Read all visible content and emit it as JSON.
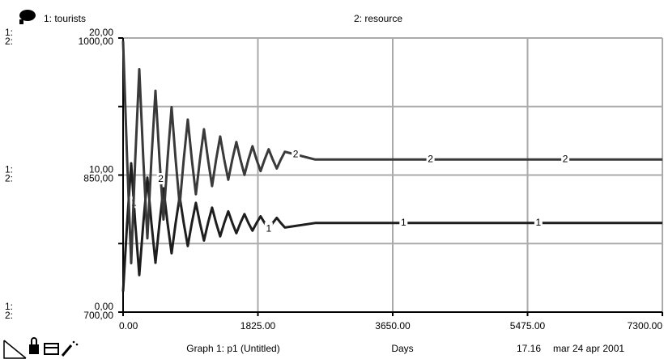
{
  "chart_data": {
    "type": "line",
    "x": [
      0,
      54.75,
      109.5,
      164.25,
      219,
      273.75,
      328.5,
      383.25,
      438,
      492.75,
      547.5,
      602.25,
      657,
      711.75,
      766.5,
      821.25,
      876,
      930.75,
      985.5,
      1040.25,
      1095,
      1149.75,
      1204.5,
      1259.25,
      1314,
      1368.75,
      1423.5,
      1478.25,
      1533,
      1587.75,
      1642.5,
      1697.25,
      1752,
      1806.75,
      1861.5,
      1916.25,
      1971,
      2025.75,
      2080.5,
      2135.25,
      2190,
      2600,
      3200,
      4000,
      5000,
      6000,
      7300
    ],
    "series": [
      {
        "name": "1: tourists",
        "key": "1",
        "axis_label": "1:",
        "color": "#1e1e1e",
        "values": [
          1.5,
          6.5,
          10.86,
          6.5,
          2.7,
          6.5,
          9.82,
          6.5,
          3.6,
          6.5,
          9.03,
          6.5,
          4.29,
          6.5,
          8.43,
          6.5,
          4.82,
          6.5,
          7.97,
          6.5,
          5.22,
          6.5,
          7.62,
          6.5,
          5.53,
          6.5,
          7.35,
          6.5,
          5.76,
          6.5,
          7.15,
          6.5,
          5.94,
          6.5,
          6.99,
          6.5,
          6.07,
          6.5,
          6.88,
          6.5,
          6.17,
          6.5,
          6.5,
          6.5,
          6.5,
          6.5,
          6.5
        ]
      },
      {
        "name": "2: resource",
        "key": "2",
        "axis_label": "2:",
        "color": "#3a3a3a",
        "axis": "y2",
        "values": [
          997,
          867,
          753.6,
          867,
          965.9,
          867,
          780.7,
          867,
          942.3,
          867,
          801.3,
          867,
          924.3,
          867,
          816.9,
          867,
          910.7,
          867,
          828.9,
          867,
          900.2,
          867,
          838,
          867,
          892.2,
          867,
          844.9,
          867,
          886.2,
          867,
          850.2,
          867,
          881.6,
          867,
          854.3,
          867,
          878.2,
          867,
          857.2,
          867,
          875.5,
          867,
          867,
          867,
          867,
          867,
          867
        ]
      }
    ],
    "xlim": [
      0,
      7300
    ],
    "xticks": [
      {
        "value": 0,
        "label": "0.00"
      },
      {
        "value": 1825,
        "label": "1825.00"
      },
      {
        "value": 3650,
        "label": "3650.00"
      },
      {
        "value": 5475,
        "label": "5475.00"
      },
      {
        "value": 7300,
        "label": "7300.00"
      }
    ],
    "ylim": [
      0,
      20
    ],
    "yticks": [
      {
        "value": 0,
        "label": "0,00"
      },
      {
        "value": 10,
        "label": "10,00"
      },
      {
        "value": 20,
        "label": "20,00"
      }
    ],
    "y2lim": [
      700,
      1000
    ],
    "y2ticks": [
      {
        "value": 700,
        "label": "700,00"
      },
      {
        "value": 850,
        "label": "850,00"
      },
      {
        "value": 1000,
        "label": "1000,00"
      }
    ],
    "x_label": "Days",
    "grid": true,
    "footer": {
      "graph": "Graph 1: p1 (Untitled)",
      "time": "17.16",
      "date": "mar 24 apr 2001"
    }
  }
}
